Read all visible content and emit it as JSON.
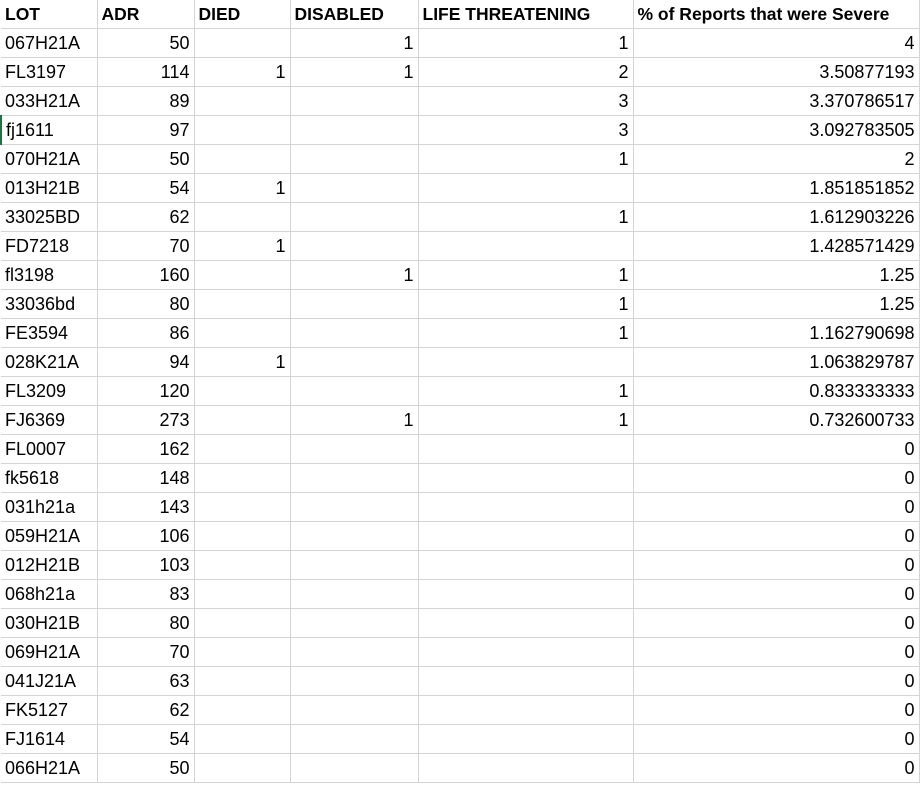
{
  "columns": {
    "lot": "LOT",
    "adr": "ADR",
    "died": "DIED",
    "disabled": "DISABLED",
    "life": "LIFE THREATENING",
    "pct": "% of Reports that were Severe"
  },
  "rows": [
    {
      "lot": "067H21A",
      "adr": "50",
      "died": "",
      "disabled": "1",
      "life": "1",
      "pct": "4"
    },
    {
      "lot": "FL3197",
      "adr": "114",
      "died": "1",
      "disabled": "1",
      "life": "2",
      "pct": "3.50877193"
    },
    {
      "lot": "033H21A",
      "adr": "89",
      "died": "",
      "disabled": "",
      "life": "3",
      "pct": "3.370786517"
    },
    {
      "lot": "fj1611",
      "adr": "97",
      "died": "",
      "disabled": "",
      "life": "3",
      "pct": "3.092783505"
    },
    {
      "lot": "070H21A",
      "adr": "50",
      "died": "",
      "disabled": "",
      "life": "1",
      "pct": "2"
    },
    {
      "lot": "013H21B",
      "adr": "54",
      "died": "1",
      "disabled": "",
      "life": "",
      "pct": "1.851851852"
    },
    {
      "lot": "33025BD",
      "adr": "62",
      "died": "",
      "disabled": "",
      "life": "1",
      "pct": "1.612903226"
    },
    {
      "lot": "FD7218",
      "adr": "70",
      "died": "1",
      "disabled": "",
      "life": "",
      "pct": "1.428571429"
    },
    {
      "lot": "fl3198",
      "adr": "160",
      "died": "",
      "disabled": "1",
      "life": "1",
      "pct": "1.25"
    },
    {
      "lot": "33036bd",
      "adr": "80",
      "died": "",
      "disabled": "",
      "life": "1",
      "pct": "1.25"
    },
    {
      "lot": "FE3594",
      "adr": "86",
      "died": "",
      "disabled": "",
      "life": "1",
      "pct": "1.162790698"
    },
    {
      "lot": "028K21A",
      "adr": "94",
      "died": "1",
      "disabled": "",
      "life": "",
      "pct": "1.063829787"
    },
    {
      "lot": "FL3209",
      "adr": "120",
      "died": "",
      "disabled": "",
      "life": "1",
      "pct": "0.833333333"
    },
    {
      "lot": "FJ6369",
      "adr": "273",
      "died": "",
      "disabled": "1",
      "life": "1",
      "pct": "0.732600733"
    },
    {
      "lot": "FL0007",
      "adr": "162",
      "died": "",
      "disabled": "",
      "life": "",
      "pct": "0"
    },
    {
      "lot": "fk5618",
      "adr": "148",
      "died": "",
      "disabled": "",
      "life": "",
      "pct": "0"
    },
    {
      "lot": "031h21a",
      "adr": "143",
      "died": "",
      "disabled": "",
      "life": "",
      "pct": "0"
    },
    {
      "lot": "059H21A",
      "adr": "106",
      "died": "",
      "disabled": "",
      "life": "",
      "pct": "0"
    },
    {
      "lot": "012H21B",
      "adr": "103",
      "died": "",
      "disabled": "",
      "life": "",
      "pct": "0"
    },
    {
      "lot": "068h21a",
      "adr": "83",
      "died": "",
      "disabled": "",
      "life": "",
      "pct": "0"
    },
    {
      "lot": "030H21B",
      "adr": "80",
      "died": "",
      "disabled": "",
      "life": "",
      "pct": "0"
    },
    {
      "lot": "069H21A",
      "adr": "70",
      "died": "",
      "disabled": "",
      "life": "",
      "pct": "0"
    },
    {
      "lot": "041J21A",
      "adr": "63",
      "died": "",
      "disabled": "",
      "life": "",
      "pct": "0"
    },
    {
      "lot": "FK5127",
      "adr": "62",
      "died": "",
      "disabled": "",
      "life": "",
      "pct": "0"
    },
    {
      "lot": "FJ1614",
      "adr": "54",
      "died": "",
      "disabled": "",
      "life": "",
      "pct": "0"
    },
    {
      "lot": "066H21A",
      "adr": "50",
      "died": "",
      "disabled": "",
      "life": "",
      "pct": "0"
    }
  ]
}
